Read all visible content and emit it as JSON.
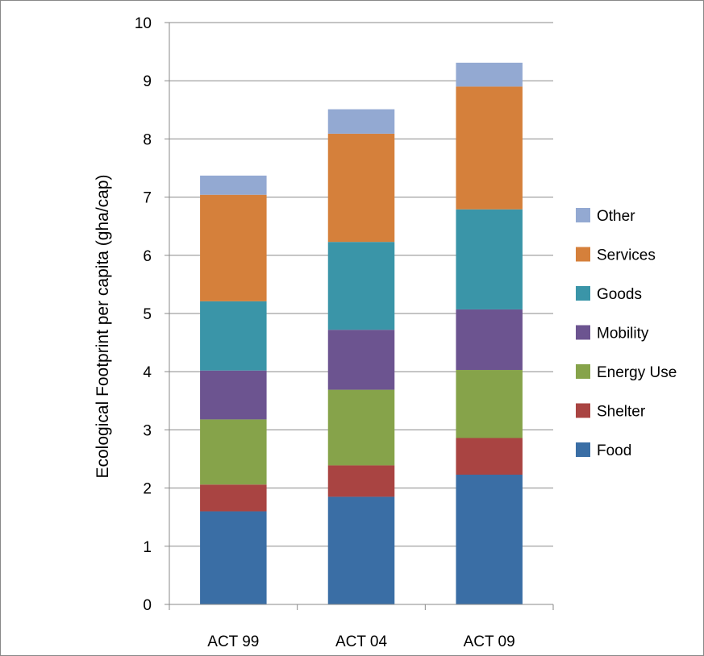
{
  "chart_data": {
    "type": "bar",
    "stacked": true,
    "title": "",
    "xlabel": "",
    "ylabel": "Ecological Footprint per capita (gha/cap)",
    "ylim": [
      0,
      10
    ],
    "y_ticks": [
      "0",
      "1",
      "2",
      "3",
      "4",
      "5",
      "6",
      "7",
      "8",
      "9",
      "10"
    ],
    "categories": [
      "ACT 99",
      "ACT 04",
      "ACT 09"
    ],
    "grid": true,
    "legend_position": "right",
    "series": [
      {
        "name": "Food",
        "color": "#3A6EA5",
        "values": [
          1.6,
          1.85,
          2.23
        ]
      },
      {
        "name": "Shelter",
        "color": "#A94442",
        "values": [
          0.46,
          0.54,
          0.63
        ]
      },
      {
        "name": "Energy Use",
        "color": "#86A34A",
        "values": [
          1.12,
          1.3,
          1.17
        ]
      },
      {
        "name": "Mobility",
        "color": "#6C5490",
        "values": [
          0.84,
          1.03,
          1.04
        ]
      },
      {
        "name": "Goods",
        "color": "#3A95A8",
        "values": [
          1.19,
          1.51,
          1.72
        ]
      },
      {
        "name": "Services",
        "color": "#D5803B",
        "values": [
          1.83,
          1.86,
          2.11
        ]
      },
      {
        "name": "Other",
        "color": "#93A9D2",
        "values": [
          0.33,
          0.42,
          0.41
        ]
      }
    ]
  }
}
